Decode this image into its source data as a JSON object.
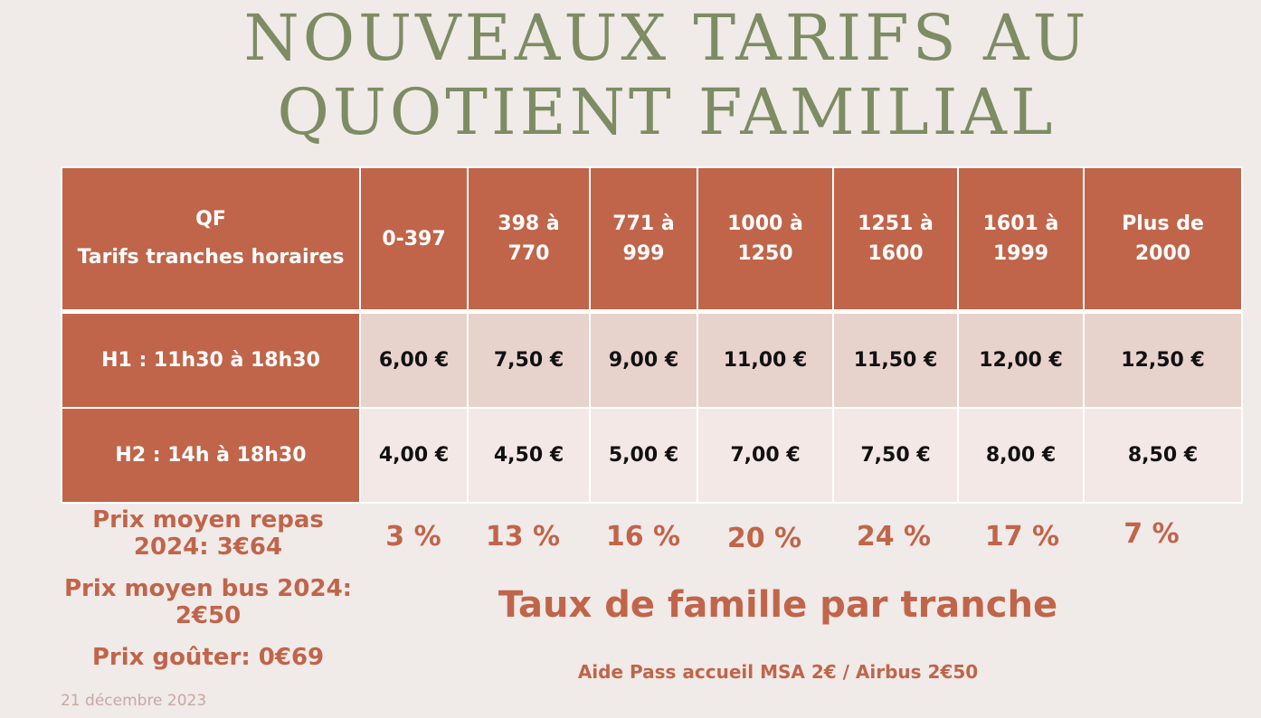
{
  "title": {
    "line1": "NOUVEAUX TARIFS AU",
    "line2": "QUOTIENT FAMILIAL"
  },
  "table": {
    "header_label_line1": "QF",
    "header_label_line2": "Tarifs tranches horaires",
    "columns": [
      {
        "line1": "0-397",
        "line2": ""
      },
      {
        "line1": "398 à",
        "line2": "770"
      },
      {
        "line1": "771 à",
        "line2": "999"
      },
      {
        "line1": "1000 à",
        "line2": "1250"
      },
      {
        "line1": "1251 à",
        "line2": "1600"
      },
      {
        "line1": "1601 à",
        "line2": "1999"
      },
      {
        "line1": "Plus de",
        "line2": "2000"
      }
    ],
    "rows": [
      {
        "label": "H1 : 11h30 à 18h30",
        "values": [
          "6,00 €",
          "7,50 €",
          "9,00 €",
          "11,00 €",
          "11,50 €",
          "12,00 €",
          "12,50 €"
        ]
      },
      {
        "label": "H2 : 14h à 18h30",
        "values": [
          "4,00 €",
          "4,50 €",
          "5,00 €",
          "7,00 €",
          "7,50 €",
          "8,00 €",
          "8,50 €"
        ]
      }
    ]
  },
  "percentages": [
    "3 %",
    "13 %",
    "16 %",
    "20 %",
    "24 %",
    "17 %",
    "7 %"
  ],
  "side": {
    "repas_line1": "Prix moyen repas",
    "repas_line2": "2024: 3€64",
    "bus_line1": "Prix moyen bus 2024:",
    "bus_line2": "2€50",
    "gouter": "Prix goûter: 0€69"
  },
  "taux_label": "Taux de famille par tranche",
  "aide": "Aide Pass accueil MSA 2€ / Airbus 2€50",
  "date": "21 décembre 2023",
  "colors": {
    "background": "#f0eae8",
    "title": "#7d8c63",
    "accent": "#c0654a",
    "row1": "#e8d2cc",
    "row2": "#f3e8e6"
  }
}
